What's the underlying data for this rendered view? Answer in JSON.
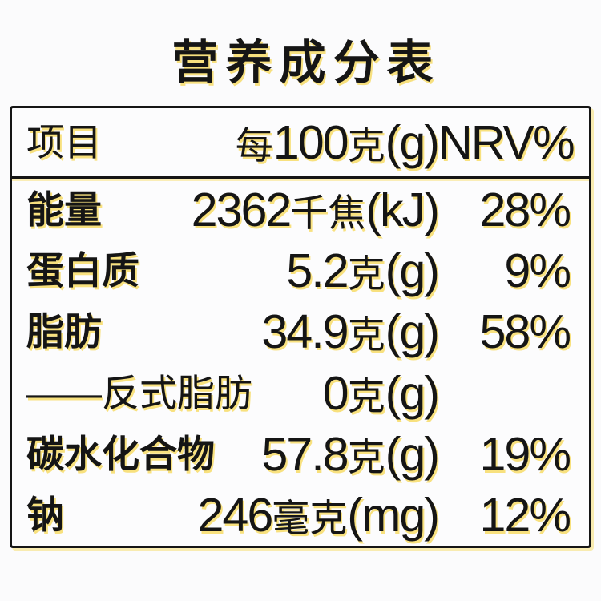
{
  "title": "营养成分表",
  "colors": {
    "ink": "#151515",
    "print_halo_yellow": "#f3c600",
    "background": "#fbfbfc",
    "table_border": "#151515"
  },
  "table": {
    "header": {
      "item": "项目",
      "per": "每100克(g)",
      "nrv": "NRV%"
    },
    "rows": [
      {
        "name": "能量",
        "value": "2362千焦(kJ)",
        "nrv": "28%",
        "bold": true
      },
      {
        "name": "蛋白质",
        "value": "5.2克(g)",
        "nrv": "9%",
        "bold": true
      },
      {
        "name": "脂肪",
        "value": "34.9克(g)",
        "nrv": "58%",
        "bold": true
      },
      {
        "name": "——反式脂肪",
        "value": "0克(g)",
        "nrv": "",
        "bold": false
      },
      {
        "name": "碳水化合物",
        "value": "57.8克(g)",
        "nrv": "19%",
        "bold": true
      },
      {
        "name": "钠",
        "value": "246毫克(mg)",
        "nrv": "12%",
        "bold": true
      }
    ]
  }
}
